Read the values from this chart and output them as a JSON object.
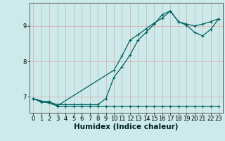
{
  "xlabel": "Humidex (Indice chaleur)",
  "background_color": "#cceaea",
  "grid_color": "#e08080",
  "line_color": "#006060",
  "xlim": [
    -0.5,
    23.5
  ],
  "ylim": [
    6.55,
    9.65
  ],
  "yticks": [
    7,
    8,
    9
  ],
  "xticks": [
    0,
    1,
    2,
    3,
    4,
    5,
    6,
    7,
    8,
    9,
    10,
    11,
    12,
    13,
    14,
    15,
    16,
    17,
    18,
    19,
    20,
    21,
    22,
    23
  ],
  "series1_x": [
    0,
    1,
    2,
    3,
    4,
    5,
    6,
    7,
    8,
    9,
    10,
    11,
    12,
    13,
    14,
    15,
    16,
    17,
    18,
    19,
    20,
    21,
    22,
    23
  ],
  "series1_y": [
    6.95,
    6.87,
    6.87,
    6.73,
    6.73,
    6.73,
    6.73,
    6.73,
    6.73,
    6.73,
    6.73,
    6.73,
    6.73,
    6.73,
    6.73,
    6.73,
    6.73,
    6.73,
    6.73,
    6.73,
    6.73,
    6.73,
    6.73,
    6.73
  ],
  "series2_x": [
    0,
    1,
    2,
    3,
    4,
    5,
    6,
    7,
    8,
    9,
    10,
    11,
    12,
    13,
    14,
    15,
    16,
    17,
    18,
    19,
    20,
    21,
    22,
    23
  ],
  "series2_y": [
    6.95,
    6.85,
    6.85,
    6.78,
    6.78,
    6.78,
    6.78,
    6.78,
    6.78,
    6.95,
    7.55,
    7.85,
    8.18,
    8.6,
    8.82,
    9.05,
    9.32,
    9.42,
    9.12,
    9.05,
    9.0,
    9.05,
    9.12,
    9.2
  ],
  "series3_x": [
    0,
    3,
    10,
    11,
    12,
    13,
    14,
    15,
    16,
    17,
    18,
    19,
    20,
    21,
    22,
    23
  ],
  "series3_y": [
    6.95,
    6.75,
    7.75,
    8.15,
    8.6,
    8.75,
    8.92,
    9.08,
    9.22,
    9.42,
    9.12,
    9.02,
    8.82,
    8.72,
    8.9,
    9.2
  ],
  "marker_size": 3.5,
  "line_width": 0.9,
  "xlabel_fontsize": 7.5,
  "tick_fontsize": 6.0
}
